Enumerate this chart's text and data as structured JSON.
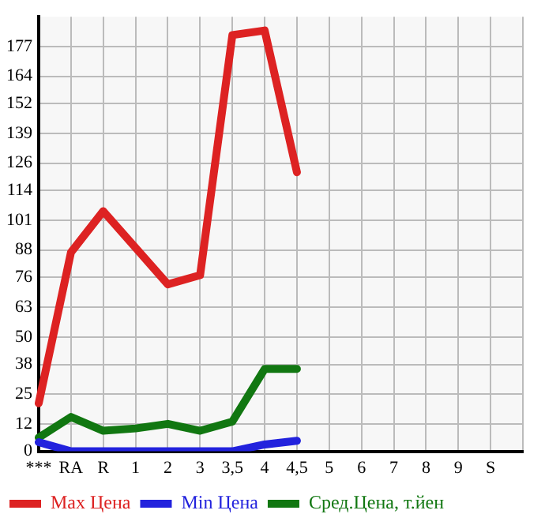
{
  "chart_data": {
    "type": "line",
    "categories": [
      "***",
      "RA",
      "R",
      "1",
      "2",
      "3",
      "3,5",
      "4",
      "4,5",
      "5",
      "6",
      "7",
      "8",
      "9",
      "S",
      null
    ],
    "series": [
      {
        "name": "Max Цена",
        "color": "#dd2222",
        "values": [
          21,
          87,
          105,
          89,
          73,
          77,
          182,
          184,
          122,
          null,
          null,
          null,
          null,
          null,
          null,
          null
        ]
      },
      {
        "name": "Min Цена",
        "color": "#2222dd",
        "values": [
          4,
          0,
          0,
          0,
          0,
          0,
          0,
          3,
          4.6,
          null,
          null,
          null,
          null,
          null,
          null,
          null
        ]
      },
      {
        "name": "Сред.Цена, т.йен",
        "color": "#117711",
        "values": [
          6,
          15,
          9,
          10,
          12,
          9,
          13,
          36,
          36,
          null,
          null,
          null,
          null,
          null,
          null,
          null
        ]
      }
    ],
    "ylim": [
      0,
      190
    ],
    "yticks": [
      0,
      12,
      25,
      38,
      50,
      63,
      76,
      88,
      101,
      114,
      126,
      139,
      152,
      164,
      177
    ],
    "grid": true,
    "legend": "bottom",
    "marker": "none",
    "line_style": "solid"
  }
}
